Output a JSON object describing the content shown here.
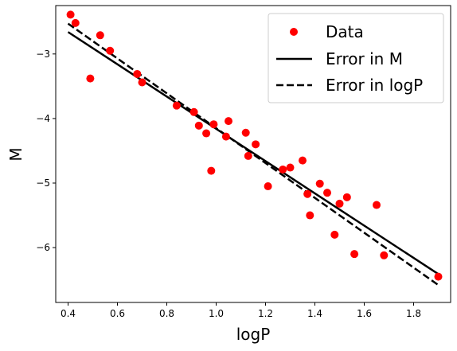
{
  "chart_data": {
    "type": "scatter",
    "title": "",
    "xlabel": "logP",
    "ylabel": "M",
    "xlim": [
      0.35,
      1.95
    ],
    "ylim": [
      -6.85,
      -2.25
    ],
    "xticks": [
      0.4,
      0.6,
      0.8,
      1.0,
      1.2,
      1.4,
      1.6,
      1.8
    ],
    "yticks": [
      -3,
      -4,
      -5,
      -6
    ],
    "xtick_labels": [
      "0.4",
      "0.6",
      "0.8",
      "1.0",
      "1.2",
      "1.4",
      "1.6",
      "1.8"
    ],
    "ytick_labels": [
      "−3",
      "−4",
      "−5",
      "−6"
    ],
    "grid": false,
    "legend_position": "top-right",
    "series": [
      {
        "name": "Data",
        "kind": "points",
        "color": "#ff0000",
        "x": [
          0.41,
          0.43,
          0.49,
          0.53,
          0.57,
          0.68,
          0.7,
          0.84,
          0.91,
          0.93,
          0.96,
          0.98,
          0.99,
          1.04,
          1.05,
          1.12,
          1.13,
          1.16,
          1.21,
          1.27,
          1.3,
          1.35,
          1.37,
          1.38,
          1.42,
          1.45,
          1.48,
          1.5,
          1.53,
          1.56,
          1.65,
          1.68,
          1.9
        ],
        "y": [
          -2.39,
          -2.52,
          -3.38,
          -2.71,
          -2.95,
          -3.31,
          -3.44,
          -3.8,
          -3.9,
          -4.11,
          -4.23,
          -4.81,
          -4.09,
          -4.28,
          -4.04,
          -4.22,
          -4.58,
          -4.4,
          -5.05,
          -4.79,
          -4.76,
          -4.65,
          -5.17,
          -5.5,
          -5.01,
          -5.15,
          -5.8,
          -5.32,
          -5.22,
          -6.1,
          -5.34,
          -6.12,
          -6.45
        ]
      },
      {
        "name": "Error in M",
        "kind": "line",
        "style": "solid",
        "color": "#000000",
        "x": [
          0.4,
          1.9
        ],
        "y": [
          -2.66,
          -6.41
        ]
      },
      {
        "name": "Error in logP",
        "kind": "line",
        "style": "dashed",
        "color": "#000000",
        "x": [
          0.4,
          1.9
        ],
        "y": [
          -2.53,
          -6.58
        ]
      }
    ]
  }
}
